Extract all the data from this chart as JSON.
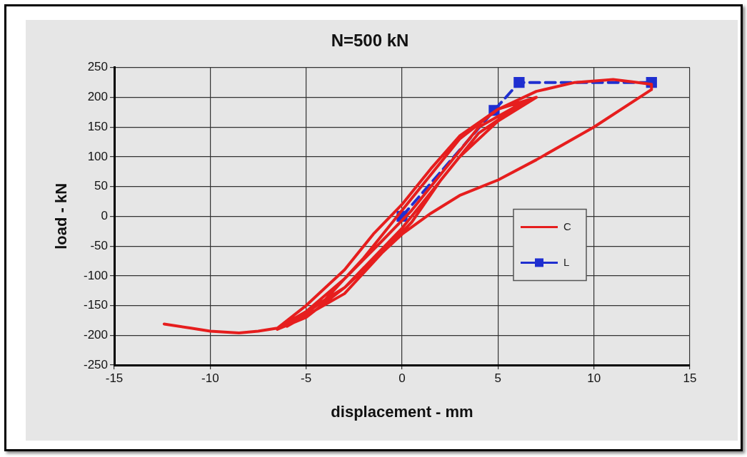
{
  "chart_data": {
    "type": "line",
    "title": "N=500 kN",
    "xlabel": "displacement - mm",
    "ylabel": "load - kN",
    "xlim": [
      -15,
      15
    ],
    "xticks": [
      -15,
      -10,
      -5,
      0,
      5,
      10,
      15
    ],
    "ylim": [
      -250,
      250
    ],
    "yticks": [
      -250,
      -200,
      -150,
      -100,
      -50,
      0,
      50,
      100,
      150,
      200,
      250
    ],
    "grid": true,
    "legend": "right",
    "series": [
      {
        "name": "C",
        "color": "#e61e1e",
        "marker": "none",
        "line_style": "solid",
        "x": [
          -12.4,
          -11,
          -10,
          -8.5,
          -7.5,
          -6.5,
          -5,
          -3,
          -1.5,
          0,
          1.5,
          3,
          5,
          7,
          5,
          3,
          1.5,
          0,
          -1.5,
          -3,
          -5,
          -6.5,
          -5,
          -3,
          -1,
          0.5,
          2,
          4,
          6.5,
          4,
          2,
          0.5,
          -1,
          -3,
          -6,
          -4,
          -2,
          0,
          1.5,
          3,
          5,
          7,
          9,
          11,
          12,
          13,
          13,
          10,
          7,
          5,
          3,
          1.5,
          0,
          -1.5,
          -3,
          -5,
          -6.5
        ],
        "values": [
          -181,
          -188,
          -193,
          -196,
          -193,
          -188,
          -150,
          -90,
          -30,
          20,
          80,
          135,
          180,
          200,
          160,
          100,
          40,
          -20,
          -70,
          -120,
          -170,
          -190,
          -160,
          -105,
          -40,
          10,
          70,
          150,
          195,
          140,
          60,
          -10,
          -60,
          -130,
          -185,
          -140,
          -70,
          10,
          70,
          130,
          180,
          210,
          225,
          230,
          226,
          222,
          213,
          150,
          95,
          61,
          35,
          5,
          -30,
          -75,
          -120,
          -160,
          -188
        ]
      },
      {
        "name": "L",
        "color": "#1f2fd0",
        "marker": "square",
        "line_style": "dashed",
        "x": [
          0,
          4.8,
          6.1,
          13
        ],
        "values": [
          0,
          178,
          225,
          225
        ]
      }
    ]
  }
}
